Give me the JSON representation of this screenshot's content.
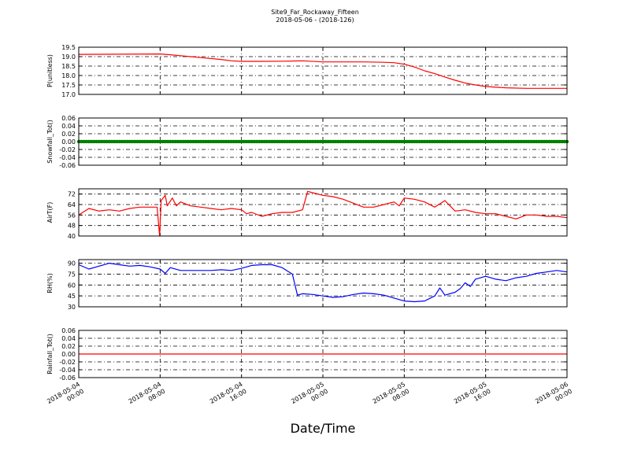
{
  "figure": {
    "title": "Site9_Far_Rockaway_Fifteen",
    "subtitle": "2018-05-06 - (2018-126)",
    "xlabel": "Date/Time"
  },
  "x_ticks": [
    {
      "t": 0,
      "line1": "2018-05-04",
      "line2": "00:00"
    },
    {
      "t": 8,
      "line1": "2018-05-04",
      "line2": "08:00"
    },
    {
      "t": 16,
      "line1": "2018-05-04",
      "line2": "16:00"
    },
    {
      "t": 24,
      "line1": "2018-05-05",
      "line2": "00:00"
    },
    {
      "t": 32,
      "line1": "2018-05-05",
      "line2": "08:00"
    },
    {
      "t": 40,
      "line1": "2018-05-05",
      "line2": "16:00"
    },
    {
      "t": 48,
      "line1": "2018-05-06",
      "line2": "00:00"
    }
  ],
  "chart_data": [
    {
      "type": "line",
      "ylabel": "P(unitless)",
      "ylim": [
        17.0,
        19.5
      ],
      "yticks": [
        "17.0",
        "17.5",
        "18.0",
        "18.5",
        "19.0",
        "19.5"
      ],
      "grid": true,
      "color": "#ff0000",
      "x_unit": "hours since 2018-05-04 00:00",
      "x": [
        0,
        4,
        8,
        9,
        10,
        11,
        12,
        14,
        15,
        16,
        18,
        20,
        22,
        24,
        26,
        28,
        30,
        31,
        32,
        33,
        34,
        35,
        36,
        37,
        38,
        39,
        40,
        41,
        42,
        44,
        46,
        48
      ],
      "values": [
        19.12,
        19.13,
        19.14,
        19.1,
        19.05,
        19.0,
        18.95,
        18.85,
        18.78,
        18.75,
        18.75,
        18.76,
        18.78,
        18.72,
        18.72,
        18.72,
        18.7,
        18.68,
        18.6,
        18.45,
        18.25,
        18.1,
        17.92,
        17.75,
        17.6,
        17.5,
        17.42,
        17.38,
        17.35,
        17.32,
        17.32,
        17.32
      ]
    },
    {
      "type": "scatter",
      "ylabel": "Snowfall_Tot()",
      "ylim": [
        -0.06,
        0.06
      ],
      "yticks": [
        "-0.06",
        "-0.04",
        "-0.02",
        "0.00",
        "0.02",
        "0.04",
        "0.06"
      ],
      "grid": true,
      "color": "#008000",
      "x_unit": "hours since 2018-05-04 00:00",
      "x": [
        0,
        48
      ],
      "values": [
        0.0,
        0.0
      ]
    },
    {
      "type": "line",
      "ylabel": "AirT(F)",
      "ylim": [
        40,
        76
      ],
      "yticks": [
        "40",
        "48",
        "56",
        "64",
        "72"
      ],
      "grid": true,
      "color": "#ff0000",
      "x_unit": "hours since 2018-05-04 00:00",
      "x": [
        0,
        1,
        2,
        3,
        4,
        5,
        6,
        7,
        7.7,
        7.95,
        8.1,
        8.5,
        8.7,
        9.2,
        9.6,
        10,
        11,
        12,
        13,
        14,
        15,
        16,
        16.5,
        17,
        18,
        19,
        20,
        21,
        22,
        22.5,
        23,
        24,
        25,
        26,
        27,
        28,
        29,
        30,
        31,
        31.5,
        32,
        33,
        34,
        35,
        36,
        37,
        38,
        39,
        40,
        41,
        42,
        43,
        44,
        45,
        46,
        47,
        48
      ],
      "values": [
        56,
        61,
        59,
        60,
        59,
        61,
        62,
        62,
        62,
        40,
        67,
        71,
        63,
        69,
        63,
        66,
        63,
        62,
        61,
        60,
        61,
        60,
        57,
        58,
        55,
        57,
        58,
        58,
        60,
        74,
        73,
        71,
        70,
        68,
        65,
        62,
        62,
        64,
        66,
        63,
        69,
        68,
        66,
        62,
        67,
        59,
        60,
        58,
        57,
        57,
        55,
        53,
        56,
        56,
        55,
        55,
        54
      ]
    },
    {
      "type": "line",
      "ylabel": "RH(%)",
      "ylim": [
        30,
        95
      ],
      "yticks": [
        "30",
        "45",
        "60",
        "75",
        "90"
      ],
      "grid": true,
      "color": "#0000ff",
      "x_unit": "hours since 2018-05-04 00:00",
      "x": [
        0,
        1,
        2,
        3,
        4,
        5,
        6,
        7,
        8,
        8.5,
        9,
        10,
        11,
        12,
        13,
        14,
        15,
        16,
        17,
        18,
        19,
        20,
        21,
        21.5,
        22,
        23,
        24,
        25,
        26,
        27,
        28,
        29,
        30,
        31,
        32,
        33,
        34,
        35,
        35.5,
        36,
        37,
        37.5,
        38,
        38.5,
        39,
        40,
        41,
        42,
        43,
        44,
        45,
        46,
        47,
        48
      ],
      "values": [
        88,
        82,
        86,
        90,
        88,
        86,
        87,
        85,
        82,
        76,
        84,
        80,
        80,
        80,
        80,
        81,
        80,
        83,
        87,
        88,
        88,
        84,
        75,
        46,
        48,
        47,
        45,
        43,
        44,
        47,
        49,
        48,
        46,
        42,
        38,
        37,
        38,
        45,
        56,
        46,
        50,
        55,
        63,
        58,
        68,
        72,
        68,
        66,
        70,
        72,
        76,
        78,
        80,
        78
      ]
    },
    {
      "type": "line",
      "ylabel": "Rainfall_Tot()",
      "ylim": [
        -0.06,
        0.06
      ],
      "yticks": [
        "-0.06",
        "-0.04",
        "-0.02",
        "0.00",
        "0.02",
        "0.04",
        "0.06"
      ],
      "grid": true,
      "color": "#ff0000",
      "x_unit": "hours since 2018-05-04 00:00",
      "x": [
        0,
        48
      ],
      "values": [
        0.0,
        0.0
      ]
    }
  ]
}
